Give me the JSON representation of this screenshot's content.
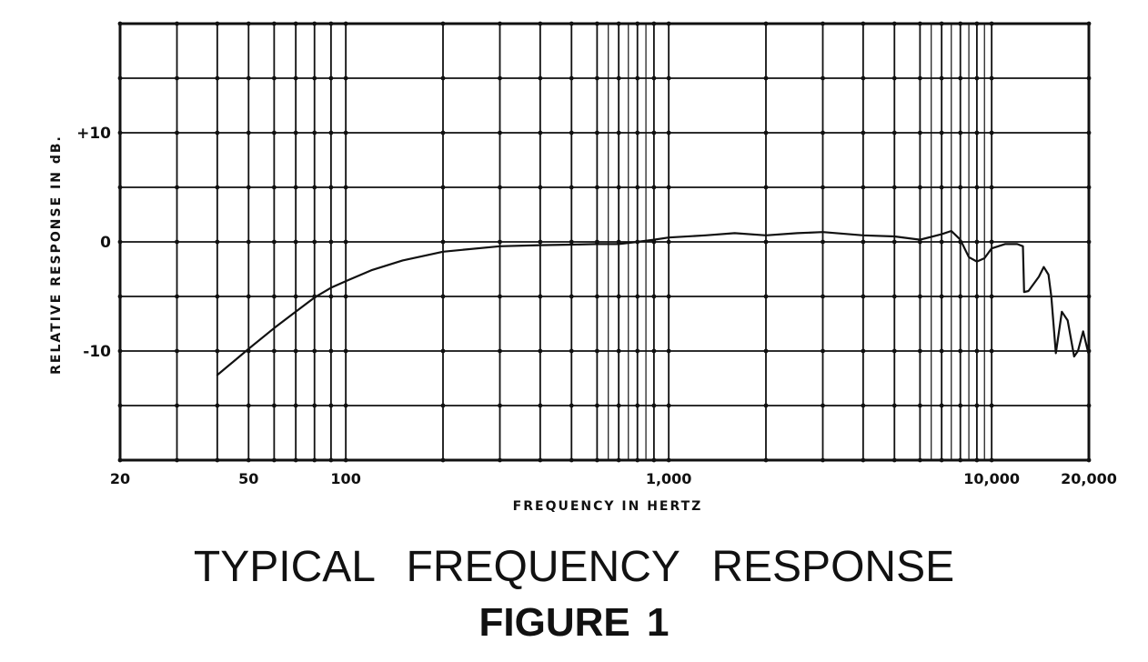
{
  "chart_data": {
    "type": "line",
    "xlabel": "FREQUENCY IN HERTZ",
    "ylabel": "RELATIVE RESPONSE IN dB.",
    "x_scale": "log",
    "xlim": [
      20,
      20000
    ],
    "ylim": [
      -20,
      20
    ],
    "grid": true,
    "x_major_grid": [
      20,
      30,
      40,
      50,
      60,
      70,
      80,
      90,
      100,
      200,
      300,
      400,
      500,
      600,
      700,
      800,
      900,
      1000,
      2000,
      3000,
      4000,
      5000,
      6000,
      7000,
      8000,
      9000,
      10000,
      20000
    ],
    "x_minor_grid": [
      650,
      750,
      850,
      6500,
      7500,
      8500,
      9500
    ],
    "y_grid": [
      -20,
      -15,
      -10,
      -5,
      0,
      5,
      10,
      15,
      20
    ],
    "x_ticks": [
      {
        "value": 20,
        "label": "20"
      },
      {
        "value": 50,
        "label": "50"
      },
      {
        "value": 100,
        "label": "100"
      },
      {
        "value": 1000,
        "label": "1,000"
      },
      {
        "value": 10000,
        "label": "10,000"
      },
      {
        "value": 20000,
        "label": "20,000"
      }
    ],
    "y_ticks": [
      {
        "value": 10,
        "label": "+10"
      },
      {
        "value": 0,
        "label": "0"
      },
      {
        "value": -10,
        "label": "-10"
      }
    ],
    "series": [
      {
        "x": [
          40,
          50,
          60,
          70,
          80,
          90,
          100,
          120,
          150,
          200,
          300,
          400,
          500,
          600,
          700,
          800,
          900,
          1000,
          1300,
          1600,
          2000,
          2500,
          3000,
          4000,
          5000,
          6000,
          7000,
          7500,
          8000,
          8500,
          9000,
          9500,
          10000,
          11000,
          12000,
          12500,
          12600,
          13000,
          14000,
          14500,
          15000,
          15300,
          15800,
          16500,
          17200,
          18000,
          18500,
          19200,
          20000
        ],
        "y": [
          -12.2,
          -9.8,
          -7.9,
          -6.4,
          -5.1,
          -4.2,
          -3.6,
          -2.6,
          -1.7,
          -0.9,
          -0.4,
          -0.3,
          -0.25,
          -0.2,
          -0.2,
          0,
          0.2,
          0.4,
          0.6,
          0.8,
          0.6,
          0.8,
          0.9,
          0.6,
          0.5,
          0.2,
          0.7,
          1.0,
          0.2,
          -1.4,
          -1.8,
          -1.5,
          -0.6,
          -0.2,
          -0.2,
          -0.4,
          -4.6,
          -4.5,
          -3.2,
          -2.3,
          -3.0,
          -5.0,
          -10.2,
          -6.4,
          -7.2,
          -10.5,
          -10.0,
          -8.2,
          -10.4
        ]
      }
    ]
  },
  "caption": {
    "title": "TYPICAL FREQUENCY RESPONSE",
    "figure": "FIGURE 1"
  }
}
